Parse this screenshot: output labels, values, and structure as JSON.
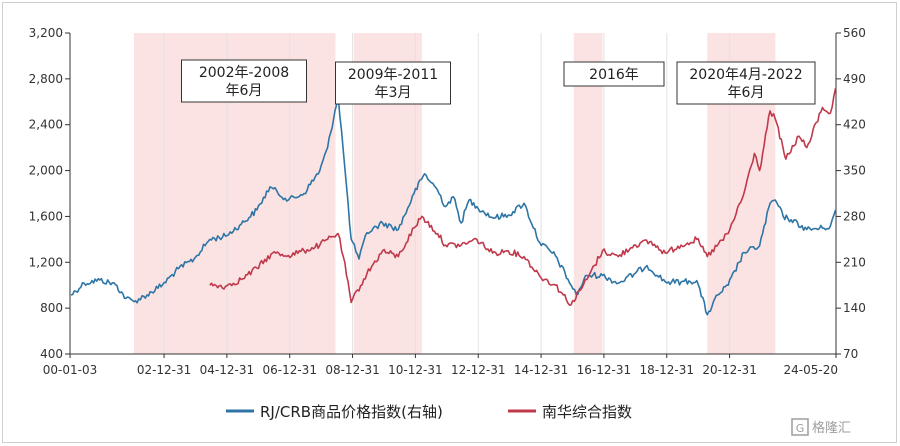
{
  "chart_data": {
    "type": "line",
    "title": "",
    "xlabel": "",
    "ylabel_left": "",
    "ylabel_right": "",
    "left_axis": {
      "ylim": [
        400,
        3200
      ],
      "ticks": [
        400,
        800,
        1200,
        1600,
        2000,
        2400,
        2800,
        3200
      ],
      "tick_labels": [
        "400",
        "800",
        "1,200",
        "1,600",
        "2,000",
        "2,400",
        "2,800",
        "3,200"
      ]
    },
    "right_axis": {
      "ylim": [
        70,
        560
      ],
      "ticks": [
        70,
        140,
        210,
        280,
        350,
        420,
        490,
        560
      ],
      "tick_labels": [
        "70",
        "140",
        "210",
        "280",
        "350",
        "420",
        "490",
        "560"
      ]
    },
    "x_axis": {
      "range": [
        "2000-01-03",
        "2024-05-20"
      ],
      "ticks": [
        "2000-01-03",
        "2002-12-31",
        "2004-12-31",
        "2006-12-31",
        "2008-12-31",
        "2010-12-31",
        "2012-12-31",
        "2014-12-31",
        "2016-12-31",
        "2018-12-31",
        "2020-12-31",
        "2024-05-20"
      ],
      "tick_labels": [
        "00-01-03",
        "02-12-31",
        "04-12-31",
        "06-12-31",
        "08-12-31",
        "10-12-31",
        "12-12-31",
        "14-12-31",
        "16-12-31",
        "18-12-31",
        "20-12-31",
        "24-05-20"
      ]
    },
    "grid": "vertical",
    "legend_position": "bottom-center",
    "shaded_periods": [
      {
        "start": "2002-01",
        "end": "2008-06",
        "label": "2002年-2008\n年6月"
      },
      {
        "start": "2009-01",
        "end": "2011-03",
        "label": "2009年-2011\n年3月"
      },
      {
        "start": "2016-01",
        "end": "2016-12",
        "label": "2016年"
      },
      {
        "start": "2020-04",
        "end": "2022-06",
        "label": "2020年4月-2022\n年6月"
      }
    ],
    "series": [
      {
        "name": "RJ/CRB商品价格指数(右轴)",
        "axis": "right",
        "color": "#2e75a6",
        "points": [
          [
            "2000-01",
            160
          ],
          [
            "2000-06",
            178
          ],
          [
            "2000-12",
            183
          ],
          [
            "2001-06",
            176
          ],
          [
            "2001-10",
            155
          ],
          [
            "2002-01",
            150
          ],
          [
            "2002-06",
            160
          ],
          [
            "2002-12",
            176
          ],
          [
            "2003-06",
            200
          ],
          [
            "2003-12",
            215
          ],
          [
            "2004-06",
            245
          ],
          [
            "2004-12",
            250
          ],
          [
            "2005-06",
            268
          ],
          [
            "2005-12",
            290
          ],
          [
            "2006-05",
            325
          ],
          [
            "2006-12",
            305
          ],
          [
            "2007-06",
            315
          ],
          [
            "2007-12",
            350
          ],
          [
            "2008-03",
            385
          ],
          [
            "2008-07",
            465
          ],
          [
            "2008-09",
            380
          ],
          [
            "2008-12",
            245
          ],
          [
            "2009-03",
            215
          ],
          [
            "2009-06",
            255
          ],
          [
            "2009-12",
            270
          ],
          [
            "2010-06",
            260
          ],
          [
            "2010-12",
            315
          ],
          [
            "2011-04",
            345
          ],
          [
            "2011-09",
            320
          ],
          [
            "2011-12",
            295
          ],
          [
            "2012-03",
            310
          ],
          [
            "2012-06",
            270
          ],
          [
            "2012-09",
            305
          ],
          [
            "2012-12",
            295
          ],
          [
            "2013-06",
            278
          ],
          [
            "2013-12",
            282
          ],
          [
            "2014-06",
            300
          ],
          [
            "2014-12",
            240
          ],
          [
            "2015-06",
            220
          ],
          [
            "2015-12",
            175
          ],
          [
            "2016-02",
            160
          ],
          [
            "2016-06",
            190
          ],
          [
            "2016-12",
            190
          ],
          [
            "2017-06",
            178
          ],
          [
            "2017-12",
            192
          ],
          [
            "2018-05",
            205
          ],
          [
            "2018-12",
            180
          ],
          [
            "2019-06",
            180
          ],
          [
            "2019-12",
            182
          ],
          [
            "2020-04",
            130
          ],
          [
            "2020-08",
            160
          ],
          [
            "2020-12",
            175
          ],
          [
            "2021-06",
            225
          ],
          [
            "2021-12",
            235
          ],
          [
            "2022-04",
            300
          ],
          [
            "2022-06",
            305
          ],
          [
            "2022-09",
            280
          ],
          [
            "2022-12",
            275
          ],
          [
            "2023-06",
            260
          ],
          [
            "2023-12",
            262
          ],
          [
            "2024-03",
            265
          ],
          [
            "2024-05",
            290
          ]
        ]
      },
      {
        "name": "南华综合指数",
        "axis": "left",
        "color": "#c0394b",
        "points": [
          [
            "2004-06",
            1000
          ],
          [
            "2004-12",
            990
          ],
          [
            "2005-06",
            1050
          ],
          [
            "2005-12",
            1150
          ],
          [
            "2006-06",
            1280
          ],
          [
            "2006-12",
            1260
          ],
          [
            "2007-06",
            1300
          ],
          [
            "2007-12",
            1350
          ],
          [
            "2008-03",
            1400
          ],
          [
            "2008-07",
            1450
          ],
          [
            "2008-09",
            1250
          ],
          [
            "2008-12",
            850
          ],
          [
            "2009-06",
            1100
          ],
          [
            "2009-12",
            1300
          ],
          [
            "2010-06",
            1250
          ],
          [
            "2010-12",
            1500
          ],
          [
            "2011-03",
            1600
          ],
          [
            "2011-09",
            1450
          ],
          [
            "2011-12",
            1350
          ],
          [
            "2012-06",
            1350
          ],
          [
            "2012-12",
            1400
          ],
          [
            "2013-06",
            1280
          ],
          [
            "2013-12",
            1300
          ],
          [
            "2014-06",
            1250
          ],
          [
            "2014-12",
            1080
          ],
          [
            "2015-06",
            1000
          ],
          [
            "2015-12",
            830
          ],
          [
            "2016-06",
            1050
          ],
          [
            "2016-12",
            1300
          ],
          [
            "2017-06",
            1250
          ],
          [
            "2017-12",
            1350
          ],
          [
            "2018-06",
            1380
          ],
          [
            "2018-12",
            1280
          ],
          [
            "2019-06",
            1350
          ],
          [
            "2019-12",
            1400
          ],
          [
            "2020-04",
            1250
          ],
          [
            "2020-12",
            1450
          ],
          [
            "2021-06",
            1800
          ],
          [
            "2021-10",
            2150
          ],
          [
            "2021-12",
            2000
          ],
          [
            "2022-04",
            2520
          ],
          [
            "2022-06",
            2450
          ],
          [
            "2022-10",
            2100
          ],
          [
            "2023-03",
            2300
          ],
          [
            "2023-06",
            2200
          ],
          [
            "2023-12",
            2550
          ],
          [
            "2024-03",
            2500
          ],
          [
            "2024-05",
            2720
          ]
        ]
      }
    ]
  },
  "watermark": "格隆汇",
  "colors": {
    "shade": "#fbe3e3",
    "axis": "#333333",
    "grid": "#e2e2e2",
    "box_border": "#333333"
  },
  "icons": {
    "watermark_logo": "glh-logo-icon"
  }
}
